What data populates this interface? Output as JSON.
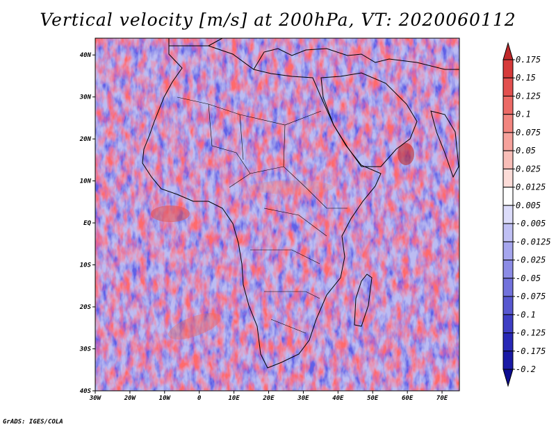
{
  "title": "Vertical velocity [m/s] at 200hPa, VT: 2020060112",
  "credit": "GrADS: IGES/COLA",
  "map": {
    "lat_labels": [
      "40N",
      "30N",
      "20N",
      "10N",
      "EQ",
      "10S",
      "20S",
      "30S",
      "40S"
    ],
    "lon_labels": [
      "30W",
      "20W",
      "10W",
      "0",
      "10E",
      "20E",
      "30E",
      "40E",
      "50E",
      "60E",
      "70E"
    ],
    "lon_range": [
      -30,
      75
    ],
    "lat_range": [
      -40,
      44
    ]
  },
  "colorbar": {
    "labels": [
      "0.175",
      "0.15",
      "0.125",
      "0.1",
      "0.075",
      "0.05",
      "0.025",
      "0.0125",
      "0.005",
      "-0.005",
      "-0.0125",
      "-0.025",
      "-0.05",
      "-0.075",
      "-0.1",
      "-0.125",
      "-0.175",
      "-0.2"
    ],
    "colors": [
      "#c0282a",
      "#d63a3a",
      "#e2504f",
      "#ec6a66",
      "#f2857f",
      "#f6a29c",
      "#f9beb8",
      "#fcdcd8",
      "#ffffff",
      "#dcdcfa",
      "#c0c0f4",
      "#a6a6ee",
      "#8c8ce6",
      "#7272dc",
      "#5858d0",
      "#3e3ec4",
      "#2828b6",
      "#1a1aa6",
      "#0c0c90"
    ]
  }
}
